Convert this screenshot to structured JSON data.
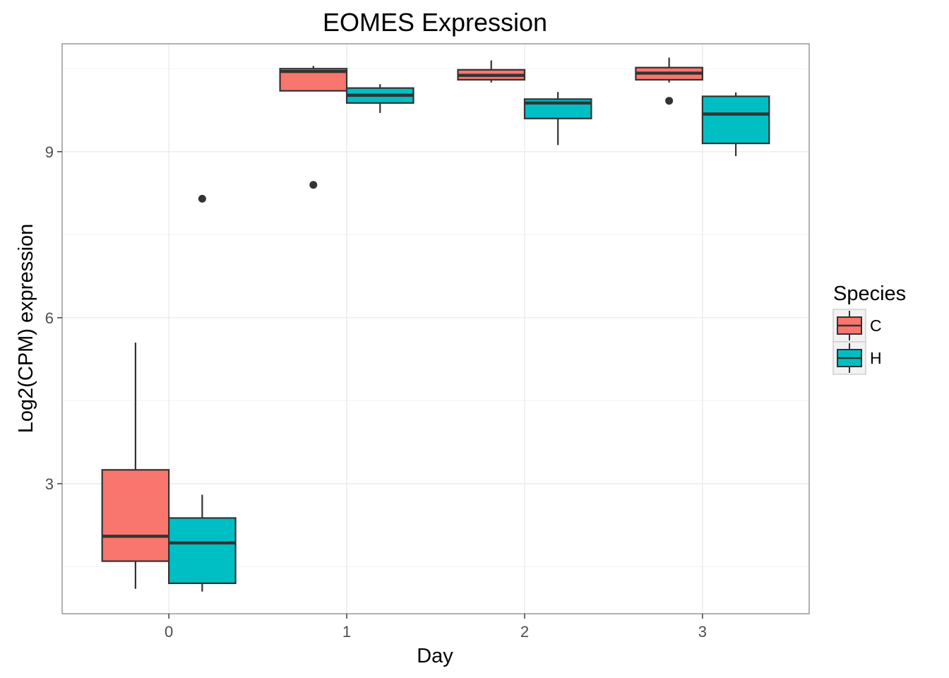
{
  "chart_data": {
    "type": "boxplot",
    "title": "EOMES Expression",
    "xlabel": "Day",
    "ylabel": "Log2(CPM) expression",
    "categories": [
      "0",
      "1",
      "2",
      "3"
    ],
    "yticks": [
      "3",
      "6",
      "9"
    ],
    "ylim": [
      0.65,
      10.95
    ],
    "grid": true,
    "legend": {
      "title": "Species",
      "position": "right",
      "entries": [
        "C",
        "H"
      ]
    },
    "colors": {
      "C": "#F8766D",
      "H": "#00BFC4",
      "outline": "#333333",
      "grid": "#ebebeb",
      "panel_border": "#7f7f7f"
    },
    "series": [
      {
        "name": "C",
        "boxes": [
          {
            "category": "0",
            "whisker_low": 1.1,
            "q1": 1.6,
            "median": 2.05,
            "q3": 3.25,
            "whisker_high": 5.55,
            "outliers": []
          },
          {
            "category": "1",
            "whisker_low": 10.1,
            "q1": 10.1,
            "median": 10.45,
            "q3": 10.5,
            "whisker_high": 10.55,
            "outliers": [
              8.4
            ]
          },
          {
            "category": "2",
            "whisker_low": 10.25,
            "q1": 10.3,
            "median": 10.38,
            "q3": 10.48,
            "whisker_high": 10.65,
            "outliers": []
          },
          {
            "category": "3",
            "whisker_low": 10.25,
            "q1": 10.3,
            "median": 10.42,
            "q3": 10.52,
            "whisker_high": 10.7,
            "outliers": [
              9.92
            ]
          }
        ]
      },
      {
        "name": "H",
        "boxes": [
          {
            "category": "0",
            "whisker_low": 1.05,
            "q1": 1.2,
            "median": 1.93,
            "q3": 2.38,
            "whisker_high": 2.8,
            "outliers": [
              8.15
            ]
          },
          {
            "category": "1",
            "whisker_low": 9.7,
            "q1": 9.88,
            "median": 10.02,
            "q3": 10.15,
            "whisker_high": 10.22,
            "outliers": []
          },
          {
            "category": "2",
            "whisker_low": 9.12,
            "q1": 9.6,
            "median": 9.88,
            "q3": 9.95,
            "whisker_high": 10.08,
            "outliers": []
          },
          {
            "category": "3",
            "whisker_low": 8.92,
            "q1": 9.15,
            "median": 9.68,
            "q3": 10.0,
            "whisker_high": 10.07,
            "outliers": []
          }
        ]
      }
    ]
  }
}
